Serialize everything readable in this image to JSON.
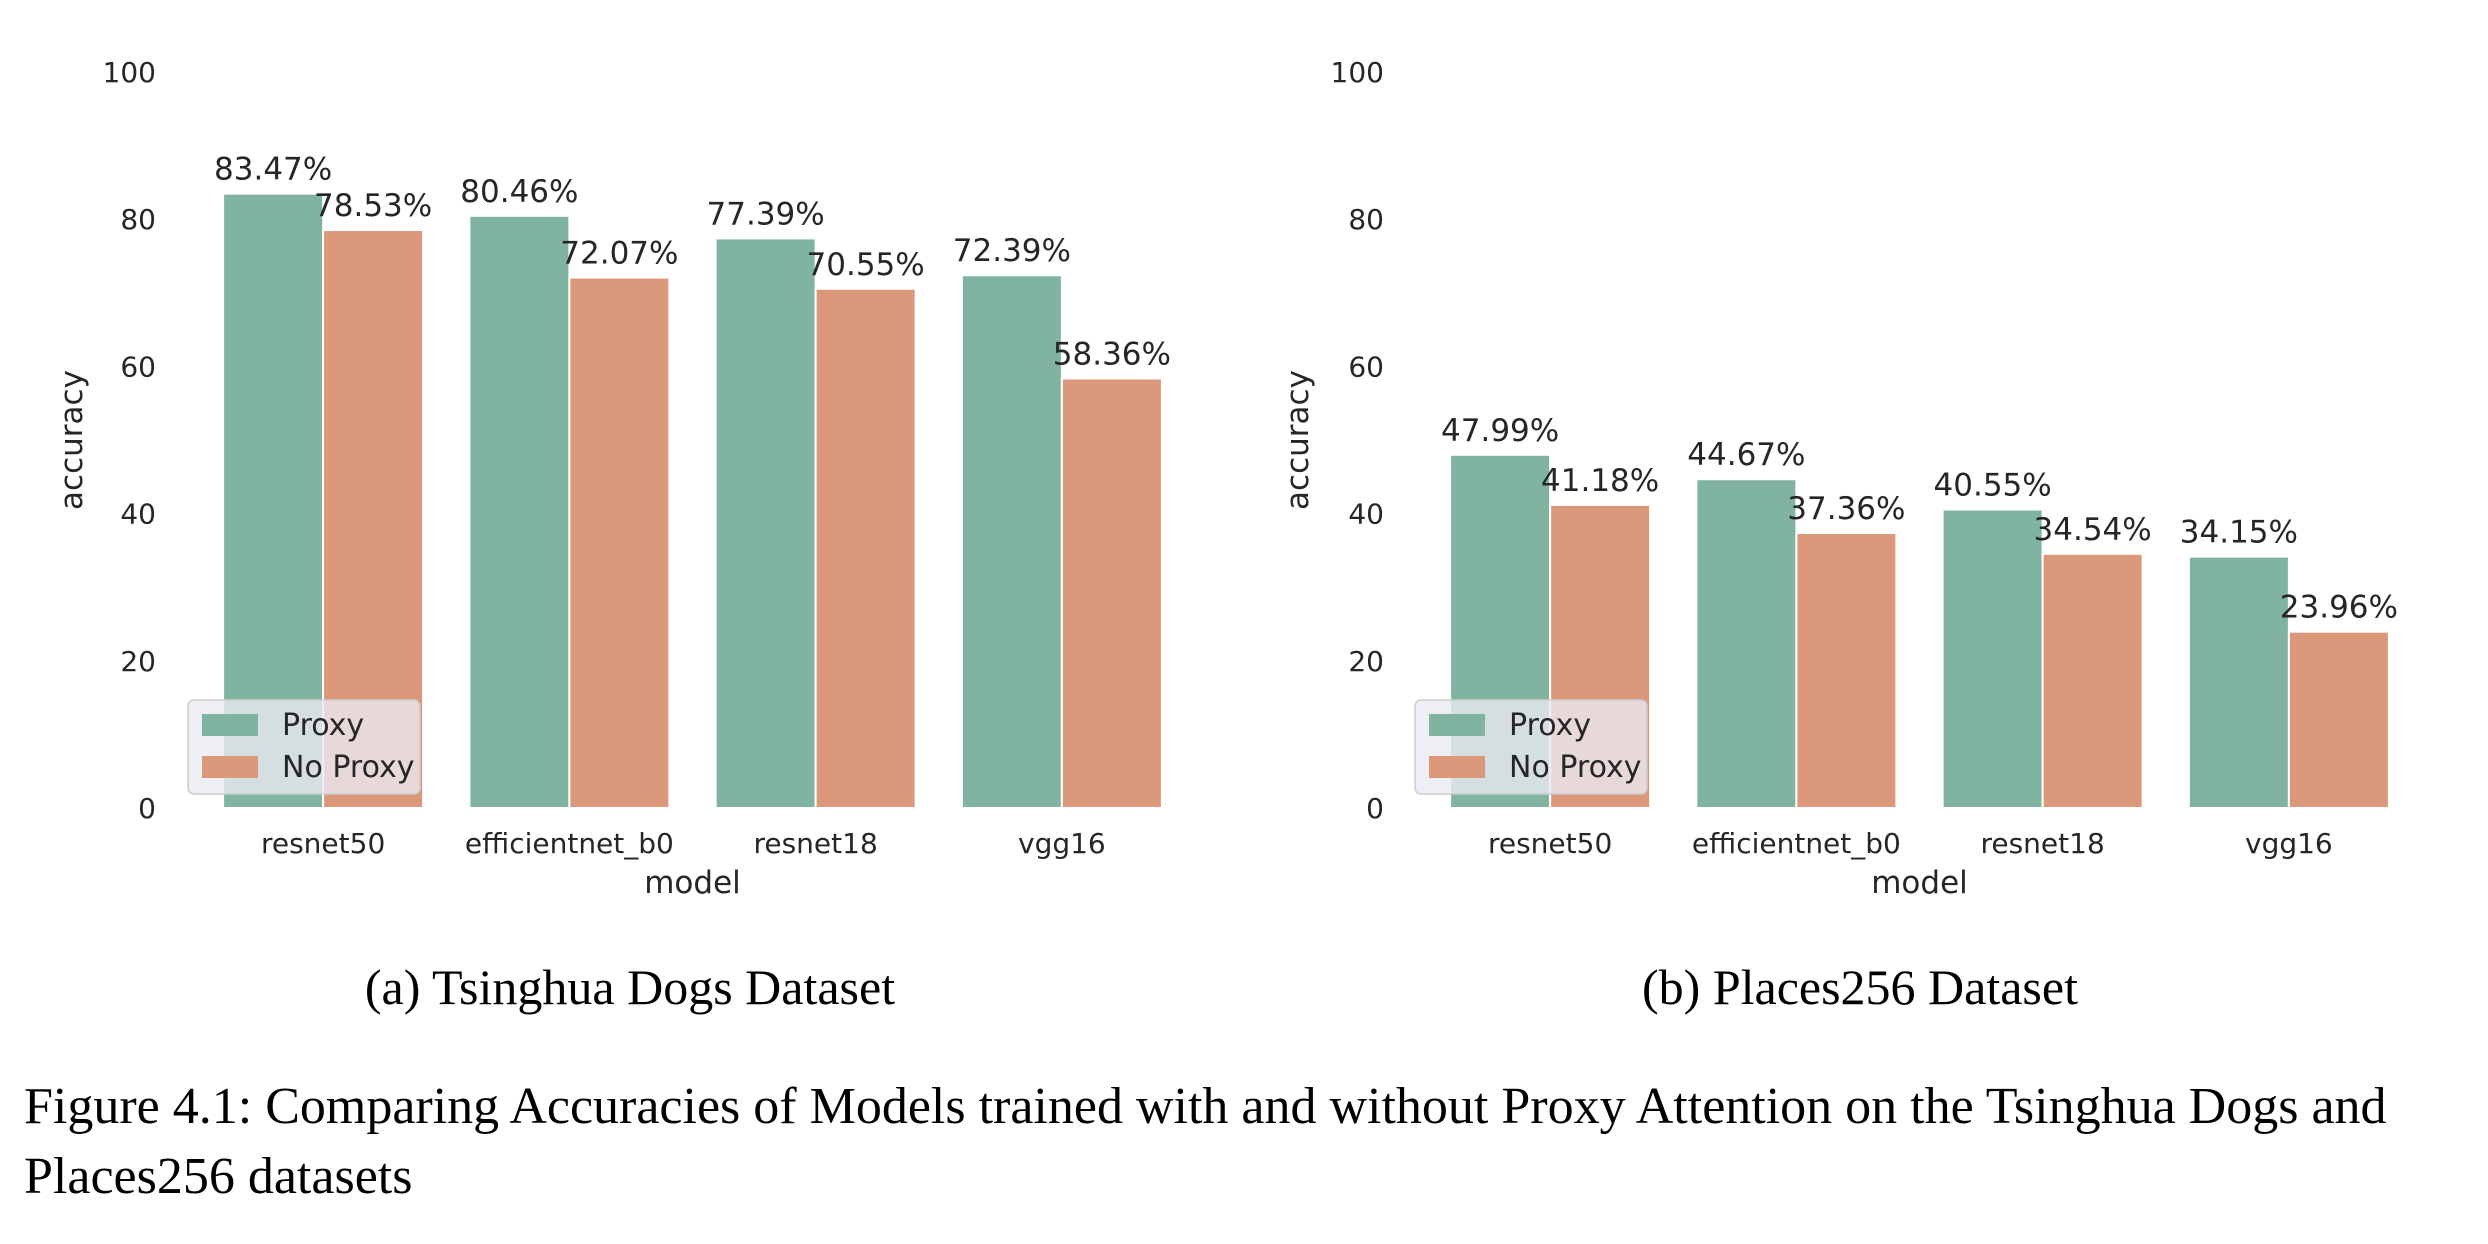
{
  "colors": {
    "proxy": "#81b3a1",
    "no_proxy": "#dc987b",
    "legend_bg": "#eaeaf2",
    "text": "#262626"
  },
  "chart_data": [
    {
      "type": "bar",
      "categories": [
        "resnet50",
        "efficientnet_b0",
        "resnet18",
        "vgg16"
      ],
      "series": [
        {
          "name": "Proxy",
          "values": [
            83.47,
            80.46,
            77.39,
            72.39
          ],
          "labels": [
            "83.47%",
            "80.46%",
            "77.39%",
            "72.39%"
          ]
        },
        {
          "name": "No Proxy",
          "values": [
            78.53,
            72.07,
            70.55,
            58.36
          ],
          "labels": [
            "78.53%",
            "72.07%",
            "70.55%",
            "58.36%"
          ]
        }
      ],
      "xlabel": "model",
      "ylabel": "accuracy",
      "ylim": [
        0,
        100
      ],
      "yticks": [
        "0",
        "20",
        "40",
        "60",
        "80",
        "100"
      ],
      "grid": false,
      "legend": "lower-left",
      "subcaption": "(a) Tsinghua Dogs Dataset"
    },
    {
      "type": "bar",
      "categories": [
        "resnet50",
        "efficientnet_b0",
        "resnet18",
        "vgg16"
      ],
      "series": [
        {
          "name": "Proxy",
          "values": [
            47.99,
            44.67,
            40.55,
            34.15
          ],
          "labels": [
            "47.99%",
            "44.67%",
            "40.55%",
            "34.15%"
          ]
        },
        {
          "name": "No Proxy",
          "values": [
            41.18,
            37.36,
            34.54,
            23.96
          ],
          "labels": [
            "41.18%",
            "37.36%",
            "34.54%",
            "23.96%"
          ]
        }
      ],
      "xlabel": "model",
      "ylabel": "accuracy",
      "ylim": [
        0,
        100
      ],
      "yticks": [
        "0",
        "20",
        "40",
        "60",
        "80",
        "100"
      ],
      "grid": false,
      "legend": "lower-left",
      "subcaption": "(b) Places256 Dataset"
    }
  ],
  "figure_caption": "Figure 4.1: Comparing Accuracies of Models trained with and without Proxy Attention on the Tsinghua Dogs and Places256 datasets"
}
